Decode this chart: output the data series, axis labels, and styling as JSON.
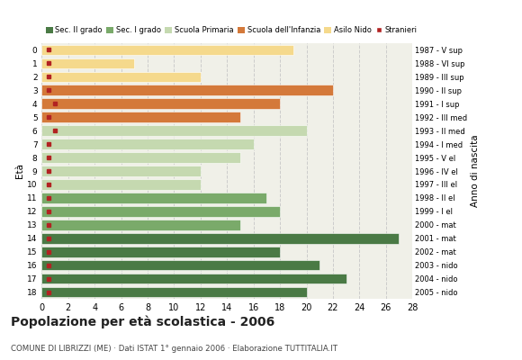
{
  "ages": [
    0,
    1,
    2,
    3,
    4,
    5,
    6,
    7,
    8,
    9,
    10,
    11,
    12,
    13,
    14,
    15,
    16,
    17,
    18
  ],
  "years": [
    "2005 - nido",
    "2004 - nido",
    "2003 - nido",
    "2002 - mat",
    "2001 - mat",
    "2000 - mat",
    "1999 - I el",
    "1998 - II el",
    "1997 - III el",
    "1996 - IV el",
    "1995 - V el",
    "1994 - I med",
    "1993 - II med",
    "1992 - III med",
    "1991 - I sup",
    "1990 - II sup",
    "1989 - III sup",
    "1988 - VI sup",
    "1987 - V sup"
  ],
  "values": [
    19,
    7,
    12,
    22,
    18,
    15,
    20,
    16,
    15,
    12,
    12,
    17,
    18,
    15,
    27,
    18,
    21,
    23,
    20
  ],
  "bar_colors": [
    "#f5d98c",
    "#f5d98c",
    "#f5d98c",
    "#d4793a",
    "#d4793a",
    "#d4793a",
    "#c5d9b0",
    "#c5d9b0",
    "#c5d9b0",
    "#c5d9b0",
    "#c5d9b0",
    "#7aaa6a",
    "#7aaa6a",
    "#7aaa6a",
    "#4a7a45",
    "#4a7a45",
    "#4a7a45",
    "#4a7a45",
    "#4a7a45"
  ],
  "stranieri_vals": [
    0.5,
    0.5,
    0.5,
    0.5,
    1.0,
    0.5,
    1.0,
    0.5,
    0.5,
    0.5,
    0.5,
    0.5,
    0.5,
    0.5,
    0.5,
    0.5,
    0.5,
    0.5,
    0.5
  ],
  "legend_colors": [
    "#4a7a45",
    "#7aaa6a",
    "#c5d9b0",
    "#d4793a",
    "#f5d98c",
    "#b22222"
  ],
  "legend_labels": [
    "Sec. II grado",
    "Sec. I grado",
    "Scuola Primaria",
    "Scuola dell'Infanzia",
    "Asilo Nido",
    "Stranieri"
  ],
  "title": "Popolazione per età scolastica - 2006",
  "subtitle": "COMUNE DI LIBRIZZI (ME) · Dati ISTAT 1° gennaio 2006 · Elaborazione TUTTITALIA.IT",
  "ylabel_left": "Età",
  "ylabel_right": "Anno di nascita",
  "xlim": [
    0,
    28
  ],
  "xticks": [
    0,
    2,
    4,
    6,
    8,
    10,
    12,
    14,
    16,
    18,
    20,
    22,
    24,
    26,
    28
  ],
  "bg_color": "#ffffff",
  "plot_bg_color": "#f0f0e8",
  "grid_color": "#cccccc"
}
